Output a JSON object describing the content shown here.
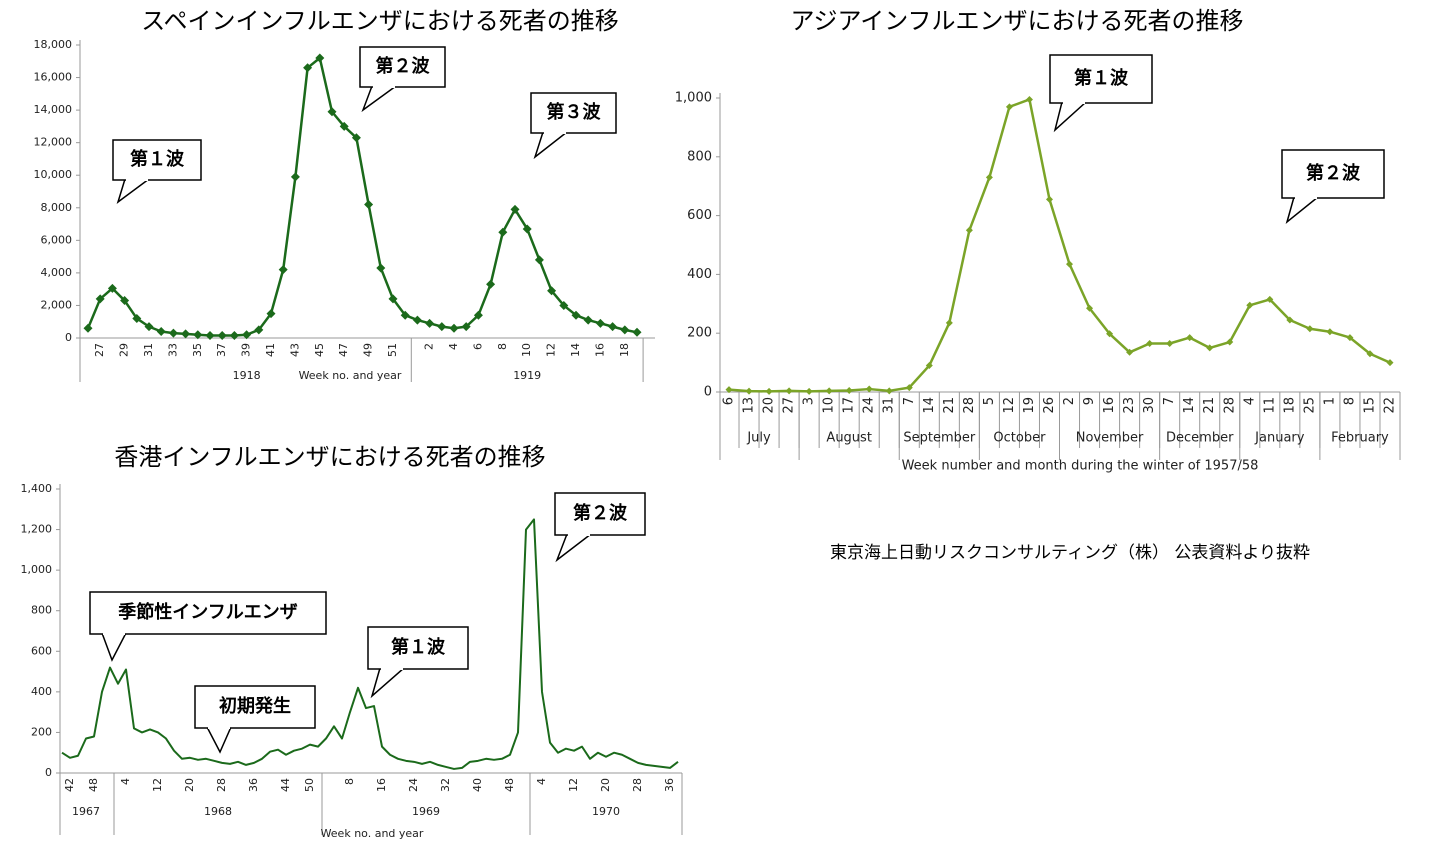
{
  "chart_data": [
    {
      "type": "line",
      "title": "スペインインフルエンザにおける死者の推移",
      "color": "#1b6a1b",
      "marker": "diamond",
      "category_groups": [
        {
          "label": "1918",
          "categories": [
            null,
            "27",
            null,
            "29",
            null,
            "31",
            null,
            "33",
            null,
            "35",
            null,
            "37",
            null,
            "39",
            null,
            "41",
            null,
            "43",
            null,
            "45",
            null,
            "47",
            null,
            "49",
            null,
            "51",
            null
          ]
        },
        {
          "label": "1919",
          "categories": [
            null,
            "2",
            null,
            "4",
            null,
            "6",
            null,
            "8",
            null,
            "10",
            null,
            "12",
            null,
            "14",
            null,
            "16",
            null,
            "18",
            null
          ]
        }
      ],
      "values": [
        600,
        2400,
        3050,
        2300,
        1200,
        700,
        400,
        300,
        250,
        200,
        150,
        150,
        150,
        200,
        500,
        1500,
        4200,
        9900,
        16600,
        17200,
        13900,
        13000,
        12300,
        8200,
        4300,
        2400,
        1400,
        1100,
        900,
        700,
        600,
        700,
        1400,
        3300,
        6500,
        7900,
        6700,
        4800,
        2900,
        2000,
        1400,
        1100,
        900,
        700,
        500,
        350
      ],
      "x_label": "Week no. and year",
      "ylim": [
        0,
        18000
      ],
      "yticks": [
        0,
        {
          "value": 2000,
          "label": "2,000"
        },
        {
          "value": 4000,
          "label": "4,000"
        },
        {
          "value": 6000,
          "label": "6,000"
        },
        {
          "value": 8000,
          "label": "8,000"
        },
        {
          "value": 10000,
          "label": "10,000"
        },
        {
          "value": 12000,
          "label": "12,000"
        },
        {
          "value": 14000,
          "label": "14,000"
        },
        {
          "value": 16000,
          "label": "16,000"
        },
        {
          "value": 18000,
          "label": "18,000"
        }
      ],
      "annotations": [
        "第１波",
        "第２波",
        "第３波"
      ]
    },
    {
      "type": "line",
      "title": "アジアインフルエンザにおける死者の推移",
      "color": "#7ba428",
      "marker": "diamond",
      "category_groups": [
        {
          "label": "July",
          "categories": [
            "6",
            "13",
            "20",
            "27"
          ]
        },
        {
          "label": "August",
          "categories": [
            "3",
            "10",
            "17",
            "24",
            "31"
          ]
        },
        {
          "label": "September",
          "categories": [
            "7",
            "14",
            "21",
            "28"
          ]
        },
        {
          "label": "October",
          "categories": [
            "5",
            "12",
            "19",
            "26"
          ]
        },
        {
          "label": "November",
          "categories": [
            "2",
            "9",
            "16",
            "23",
            "30"
          ]
        },
        {
          "label": "December",
          "categories": [
            "7",
            "14",
            "21",
            "28"
          ]
        },
        {
          "label": "January",
          "categories": [
            "4",
            "11",
            "18",
            "25"
          ]
        },
        {
          "label": "February",
          "categories": [
            "1",
            "8",
            "15",
            "22"
          ]
        }
      ],
      "values": [
        8,
        3,
        2,
        4,
        2,
        4,
        5,
        10,
        4,
        15,
        90,
        235,
        550,
        730,
        970,
        995,
        655,
        435,
        285,
        198,
        135,
        165,
        165,
        185,
        150,
        170,
        295,
        315,
        245,
        215,
        205,
        185,
        130,
        100
      ],
      "x_label": "Week number and month during the winter of 1957/58",
      "ylim": [
        0,
        1000
      ],
      "yticks": [
        0,
        200,
        400,
        600,
        800,
        {
          "value": 1000,
          "label": "1,000"
        }
      ],
      "annotations": [
        "第１波",
        "第２波"
      ]
    },
    {
      "type": "line",
      "title": "香港インフルエンザにおける死者の推移",
      "color": "#1b6a1b",
      "marker": "none",
      "category_groups": [
        {
          "label": "1967",
          "categories": [
            null,
            "42",
            null,
            null,
            "48",
            null,
            null
          ]
        },
        {
          "label": "1968",
          "categories": [
            null,
            "4",
            null,
            null,
            null,
            "12",
            null,
            null,
            null,
            "20",
            null,
            null,
            null,
            "28",
            null,
            null,
            null,
            "36",
            null,
            null,
            null,
            "44",
            null,
            null,
            "50",
            null
          ]
        },
        {
          "label": "1969",
          "categories": [
            null,
            null,
            null,
            "8",
            null,
            null,
            null,
            "16",
            null,
            null,
            null,
            "24",
            null,
            null,
            null,
            "32",
            null,
            null,
            null,
            "40",
            null,
            null,
            null,
            "48",
            null,
            null
          ]
        },
        {
          "label": "1970",
          "categories": [
            null,
            "4",
            null,
            null,
            null,
            "12",
            null,
            null,
            null,
            "20",
            null,
            null,
            null,
            "28",
            null,
            null,
            null,
            "36",
            null
          ]
        }
      ],
      "values": [
        100,
        75,
        85,
        170,
        180,
        400,
        520,
        440,
        510,
        220,
        200,
        215,
        200,
        170,
        110,
        70,
        75,
        65,
        70,
        60,
        50,
        45,
        55,
        40,
        50,
        70,
        105,
        115,
        90,
        110,
        120,
        140,
        130,
        170,
        230,
        170,
        300,
        420,
        320,
        330,
        130,
        90,
        70,
        60,
        55,
        45,
        55,
        40,
        30,
        20,
        25,
        55,
        60,
        70,
        65,
        70,
        90,
        200,
        1200,
        1250,
        400,
        150,
        100,
        120,
        110,
        130,
        70,
        100,
        80,
        100,
        90,
        70,
        50,
        40,
        35,
        30,
        25,
        55
      ],
      "x_label": "Week no. and year",
      "ylim": [
        0,
        1400
      ],
      "yticks": [
        0,
        200,
        400,
        600,
        800,
        {
          "value": 1000,
          "label": "1,000"
        },
        {
          "value": 1200,
          "label": "1,200"
        },
        {
          "value": 1400,
          "label": "1,400"
        }
      ],
      "annotations": [
        "季節性インフルエンザ",
        "初期発生",
        "第１波",
        "第２波"
      ]
    }
  ],
  "footer": "東京海上日動リスクコンサルティング（株） 公表資料より抜粋"
}
